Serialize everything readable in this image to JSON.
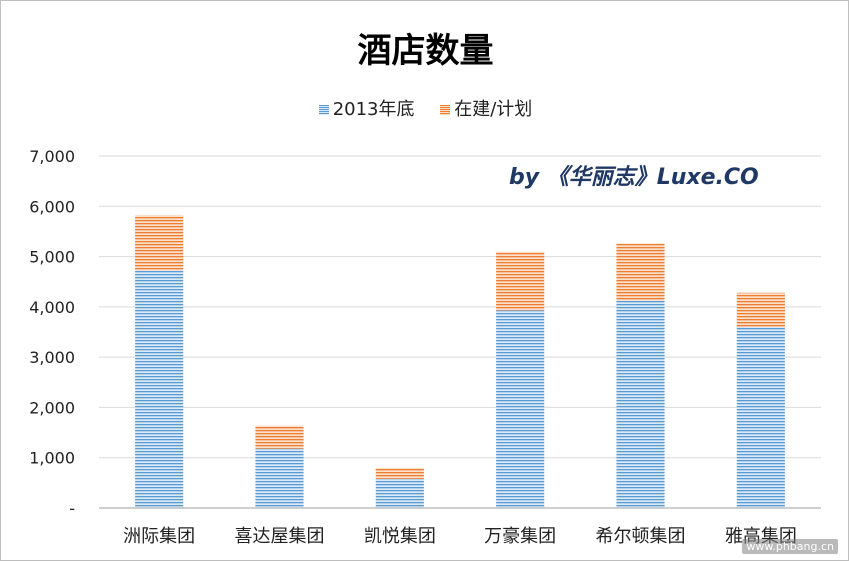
{
  "chart_data": {
    "type": "bar",
    "stacked": true,
    "title": "酒店数量",
    "categories": [
      "洲际集团",
      "喜达屋集团",
      "凯悦集团",
      "万豪集团",
      "希尔顿集团",
      "雅高集团"
    ],
    "series": [
      {
        "name": "2013年底",
        "values": [
          4720,
          1180,
          580,
          3930,
          4120,
          3600
        ],
        "color": "#5b9bd5"
      },
      {
        "name": "在建/计划",
        "values": [
          1100,
          460,
          220,
          1170,
          1140,
          680
        ],
        "color": "#ed7d31"
      }
    ],
    "ylim": [
      0,
      7000
    ],
    "yticks": [
      0,
      1000,
      2000,
      3000,
      4000,
      5000,
      6000,
      7000
    ],
    "ytick_labels": [
      "-",
      "1,000",
      "2,000",
      "3,000",
      "4,000",
      "5,000",
      "6,000",
      "7,000"
    ],
    "xlabel": "",
    "ylabel": "",
    "grid": true,
    "legend_position": "top",
    "annotation": "by 《华丽志》Luxe.CO"
  },
  "watermark": "www.phbang.cn"
}
